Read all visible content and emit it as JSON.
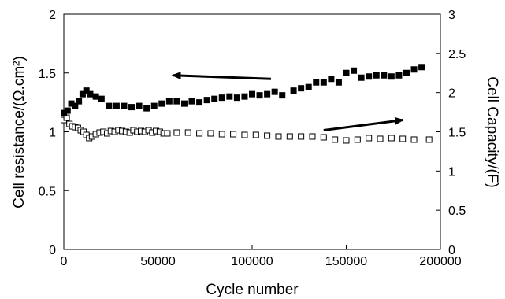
{
  "chart_data": {
    "type": "scatter",
    "xlabel": "Cycle number",
    "ylabel_left": "Cell resistance/(Ω.cm²)",
    "ylabel_right": "Cell Capacity/(F)",
    "xlim": [
      0,
      200000
    ],
    "ylim_left": [
      0,
      2
    ],
    "ylim_right": [
      0,
      3
    ],
    "x_ticks": [
      "0",
      "50000",
      "100000",
      "150000",
      "200000"
    ],
    "y_left_ticks": [
      "0",
      "0.5",
      "1",
      "1.5",
      "2"
    ],
    "y_right_ticks": [
      "0",
      "0.5",
      "1",
      "1.5",
      "2",
      "2.5",
      "3"
    ],
    "grid": false,
    "series": [
      {
        "axis": "left",
        "marker": "filled-square",
        "color": "#000000",
        "x": [
          0,
          2000,
          4000,
          6000,
          8000,
          10000,
          12000,
          14000,
          17000,
          20000,
          24000,
          28000,
          32000,
          36000,
          40000,
          44000,
          48000,
          52000,
          56000,
          60000,
          64000,
          68000,
          72000,
          76000,
          80000,
          84000,
          88000,
          92000,
          96000,
          100000,
          104000,
          108000,
          112000,
          116000,
          122000,
          126000,
          130000,
          134000,
          138000,
          142000,
          146000,
          150000,
          154000,
          158000,
          162000,
          166000,
          170000,
          174000,
          178000,
          182000,
          186000,
          190000
        ],
        "values": [
          1.16,
          1.18,
          1.24,
          1.22,
          1.26,
          1.32,
          1.35,
          1.32,
          1.3,
          1.28,
          1.22,
          1.22,
          1.22,
          1.21,
          1.22,
          1.2,
          1.22,
          1.24,
          1.26,
          1.26,
          1.24,
          1.26,
          1.25,
          1.27,
          1.28,
          1.29,
          1.3,
          1.29,
          1.3,
          1.32,
          1.31,
          1.32,
          1.34,
          1.31,
          1.35,
          1.37,
          1.38,
          1.42,
          1.42,
          1.45,
          1.42,
          1.5,
          1.52,
          1.46,
          1.47,
          1.48,
          1.48,
          1.47,
          1.48,
          1.5,
          1.53,
          1.55
        ]
      },
      {
        "axis": "right",
        "marker": "open-square",
        "color": "#000000",
        "x": [
          0,
          1500,
          3000,
          4500,
          6000,
          7500,
          9000,
          10500,
          12000,
          13500,
          15000,
          17000,
          19000,
          21000,
          23000,
          25000,
          27000,
          29000,
          31000,
          33000,
          35000,
          37000,
          39000,
          41000,
          43000,
          45000,
          47000,
          49000,
          51000,
          53000,
          55000,
          60000,
          66000,
          72000,
          78000,
          84000,
          90000,
          96000,
          102000,
          108000,
          114000,
          120000,
          126000,
          132000,
          138000,
          144000,
          150000,
          156000,
          162000,
          168000,
          174000,
          180000,
          186000,
          194000
        ],
        "values": [
          1.65,
          1.68,
          1.6,
          1.57,
          1.56,
          1.55,
          1.52,
          1.5,
          1.46,
          1.42,
          1.44,
          1.47,
          1.49,
          1.5,
          1.48,
          1.51,
          1.5,
          1.52,
          1.51,
          1.5,
          1.49,
          1.52,
          1.5,
          1.51,
          1.5,
          1.52,
          1.49,
          1.51,
          1.5,
          1.48,
          1.48,
          1.49,
          1.49,
          1.48,
          1.48,
          1.47,
          1.47,
          1.46,
          1.46,
          1.45,
          1.44,
          1.44,
          1.44,
          1.44,
          1.43,
          1.4,
          1.39,
          1.4,
          1.42,
          1.41,
          1.42,
          1.41,
          1.4,
          1.4
        ]
      }
    ],
    "annotations": [
      {
        "type": "arrow",
        "direction": "left",
        "target_axis": "left",
        "from": [
          110000,
          1.45
        ],
        "to": [
          58000,
          1.48
        ]
      },
      {
        "type": "arrow",
        "direction": "right",
        "target_axis": "right",
        "from": [
          138000,
          1.52
        ],
        "to": [
          180000,
          1.65
        ]
      }
    ]
  }
}
